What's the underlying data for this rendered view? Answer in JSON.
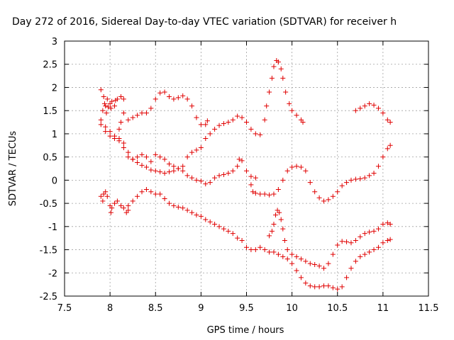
{
  "chart_data": {
    "type": "scatter",
    "title": "Day 272 of 2016, Sidereal Day-to-day VTEC variation (SDTVAR) for receiver h",
    "xlabel": "GPS time / hours",
    "ylabel": "SDTVAR / TECUs",
    "xlim": [
      7.5,
      11.5
    ],
    "ylim": [
      -2.5,
      3
    ],
    "xticks": [
      "7.5",
      "8",
      "8.5",
      "9",
      "9.5",
      "10",
      "10.5",
      "11",
      "11.5"
    ],
    "yticks": [
      "-2.5",
      "-2",
      "-1.5",
      "-1",
      "-0.5",
      "0",
      "0.5",
      "1",
      "1.5",
      "2",
      "2.5",
      "3"
    ],
    "grid": true,
    "marker": "+",
    "color": "#e00000",
    "series": [
      {
        "points": [
          [
            7.9,
            1.95
          ],
          [
            7.93,
            1.8
          ],
          [
            7.95,
            1.6
          ],
          [
            7.97,
            1.75
          ],
          [
            8.0,
            1.65
          ],
          [
            8.02,
            1.7
          ],
          [
            8.05,
            1.6
          ],
          [
            8.08,
            1.75
          ],
          [
            7.92,
            1.5
          ],
          [
            7.96,
            1.45
          ],
          [
            8.01,
            1.55
          ],
          [
            8.06,
            1.72
          ],
          [
            8.12,
            1.8
          ],
          [
            8.15,
            1.75
          ],
          [
            7.94,
            1.65
          ],
          [
            7.98,
            1.58
          ]
        ]
      },
      {
        "points": [
          [
            7.9,
            1.3
          ],
          [
            7.95,
            1.15
          ],
          [
            8.0,
            1.05
          ],
          [
            8.05,
            0.95
          ],
          [
            8.1,
            0.9
          ],
          [
            8.15,
            0.8
          ],
          [
            8.2,
            0.6
          ],
          [
            8.25,
            0.45
          ],
          [
            8.3,
            0.38
          ],
          [
            8.35,
            0.32
          ],
          [
            8.4,
            0.28
          ],
          [
            8.45,
            0.22
          ],
          [
            8.5,
            0.2
          ],
          [
            8.55,
            0.18
          ],
          [
            8.6,
            0.15
          ],
          [
            8.65,
            0.18
          ],
          [
            8.7,
            0.2
          ],
          [
            8.75,
            0.25
          ],
          [
            8.8,
            0.2
          ],
          [
            8.85,
            0.1
          ],
          [
            8.9,
            0.05
          ],
          [
            8.95,
            0.0
          ],
          [
            9.0,
            -0.02
          ],
          [
            9.05,
            -0.08
          ],
          [
            9.1,
            -0.05
          ],
          [
            9.15,
            0.05
          ],
          [
            9.2,
            0.1
          ],
          [
            9.25,
            0.12
          ],
          [
            9.3,
            0.15
          ],
          [
            9.35,
            0.2
          ],
          [
            9.4,
            0.3
          ],
          [
            9.42,
            0.45
          ],
          [
            9.45,
            0.42
          ],
          [
            9.5,
            0.2
          ],
          [
            9.55,
            0.08
          ],
          [
            9.6,
            0.05
          ],
          [
            9.55,
            -0.1
          ],
          [
            9.57,
            -0.25
          ],
          [
            9.6,
            -0.28
          ],
          [
            9.65,
            -0.3
          ],
          [
            9.7,
            -0.3
          ],
          [
            9.75,
            -0.32
          ],
          [
            9.8,
            -0.3
          ],
          [
            9.85,
            -0.2
          ],
          [
            9.9,
            0.0
          ],
          [
            9.95,
            0.2
          ],
          [
            10.0,
            0.28
          ],
          [
            10.05,
            0.3
          ],
          [
            10.1,
            0.28
          ],
          [
            10.15,
            0.2
          ],
          [
            10.2,
            -0.05
          ],
          [
            10.25,
            -0.25
          ],
          [
            10.3,
            -0.38
          ],
          [
            10.35,
            -0.45
          ],
          [
            10.4,
            -0.42
          ],
          [
            10.45,
            -0.35
          ],
          [
            10.5,
            -0.25
          ],
          [
            10.55,
            -0.12
          ],
          [
            10.6,
            -0.05
          ],
          [
            10.65,
            0.0
          ],
          [
            10.7,
            0.02
          ],
          [
            10.75,
            0.03
          ],
          [
            10.8,
            0.05
          ],
          [
            10.85,
            0.1
          ],
          [
            10.9,
            0.15
          ],
          [
            10.95,
            0.3
          ],
          [
            11.0,
            0.5
          ],
          [
            11.05,
            0.68
          ],
          [
            11.08,
            0.75
          ]
        ]
      },
      {
        "points": [
          [
            7.9,
            1.2
          ],
          [
            7.95,
            1.05
          ],
          [
            8.0,
            0.95
          ],
          [
            8.05,
            0.9
          ],
          [
            8.1,
            1.1
          ],
          [
            8.12,
            1.25
          ],
          [
            8.15,
            1.45
          ],
          [
            8.2,
            1.3
          ],
          [
            8.25,
            1.35
          ],
          [
            8.3,
            1.4
          ],
          [
            8.35,
            1.45
          ],
          [
            8.4,
            1.45
          ],
          [
            8.45,
            1.55
          ],
          [
            8.5,
            1.75
          ],
          [
            8.55,
            1.88
          ],
          [
            8.6,
            1.9
          ],
          [
            8.65,
            1.8
          ],
          [
            8.7,
            1.75
          ],
          [
            8.75,
            1.78
          ],
          [
            8.8,
            1.82
          ],
          [
            8.85,
            1.75
          ],
          [
            8.9,
            1.6
          ],
          [
            8.95,
            1.35
          ],
          [
            9.0,
            1.2
          ],
          [
            9.05,
            1.2
          ],
          [
            9.07,
            1.28
          ]
        ]
      },
      {
        "points": [
          [
            8.1,
            0.85
          ],
          [
            8.15,
            0.7
          ],
          [
            8.2,
            0.5
          ],
          [
            8.25,
            0.45
          ],
          [
            8.3,
            0.5
          ],
          [
            8.35,
            0.55
          ],
          [
            8.4,
            0.5
          ],
          [
            8.45,
            0.4
          ],
          [
            8.5,
            0.55
          ],
          [
            8.55,
            0.5
          ],
          [
            8.6,
            0.45
          ],
          [
            8.65,
            0.35
          ],
          [
            8.7,
            0.3
          ],
          [
            8.75,
            0.25
          ],
          [
            8.8,
            0.3
          ],
          [
            8.85,
            0.5
          ],
          [
            8.9,
            0.6
          ],
          [
            8.95,
            0.65
          ],
          [
            9.0,
            0.7
          ],
          [
            9.05,
            0.9
          ],
          [
            9.1,
            1.0
          ],
          [
            9.15,
            1.1
          ],
          [
            9.2,
            1.18
          ],
          [
            9.25,
            1.22
          ],
          [
            9.3,
            1.25
          ],
          [
            9.35,
            1.3
          ],
          [
            9.4,
            1.38
          ],
          [
            9.45,
            1.35
          ],
          [
            9.5,
            1.25
          ],
          [
            9.55,
            1.1
          ],
          [
            9.6,
            1.0
          ],
          [
            9.65,
            0.98
          ],
          [
            9.7,
            1.3
          ],
          [
            9.72,
            1.6
          ],
          [
            9.75,
            1.9
          ],
          [
            9.78,
            2.2
          ],
          [
            9.8,
            2.45
          ],
          [
            9.83,
            2.58
          ],
          [
            9.85,
            2.55
          ],
          [
            9.88,
            2.4
          ],
          [
            9.9,
            2.2
          ],
          [
            9.93,
            1.9
          ],
          [
            9.97,
            1.65
          ],
          [
            10.0,
            1.5
          ],
          [
            10.05,
            1.4
          ],
          [
            10.1,
            1.3
          ],
          [
            10.12,
            1.25
          ]
        ]
      },
      {
        "points": [
          [
            8.15,
            -0.6
          ],
          [
            8.2,
            -0.55
          ],
          [
            8.25,
            -0.45
          ],
          [
            8.3,
            -0.35
          ],
          [
            8.35,
            -0.25
          ],
          [
            8.4,
            -0.2
          ],
          [
            8.45,
            -0.25
          ],
          [
            8.5,
            -0.3
          ],
          [
            8.55,
            -0.3
          ],
          [
            8.6,
            -0.4
          ],
          [
            8.65,
            -0.5
          ],
          [
            8.7,
            -0.55
          ],
          [
            8.75,
            -0.58
          ],
          [
            8.8,
            -0.6
          ],
          [
            8.85,
            -0.65
          ],
          [
            8.9,
            -0.7
          ],
          [
            8.95,
            -0.75
          ],
          [
            9.0,
            -0.78
          ],
          [
            9.05,
            -0.85
          ],
          [
            9.1,
            -0.9
          ],
          [
            9.15,
            -0.95
          ],
          [
            9.2,
            -1.0
          ],
          [
            9.25,
            -1.05
          ],
          [
            9.3,
            -1.1
          ],
          [
            9.35,
            -1.15
          ],
          [
            9.4,
            -1.25
          ],
          [
            9.45,
            -1.3
          ],
          [
            9.5,
            -1.45
          ],
          [
            9.55,
            -1.5
          ],
          [
            9.6,
            -1.5
          ],
          [
            9.65,
            -1.45
          ],
          [
            9.7,
            -1.5
          ],
          [
            9.75,
            -1.55
          ],
          [
            9.8,
            -1.55
          ],
          [
            9.85,
            -1.6
          ],
          [
            9.9,
            -1.65
          ],
          [
            9.95,
            -1.7
          ],
          [
            10.0,
            -1.8
          ],
          [
            10.05,
            -1.95
          ],
          [
            10.1,
            -2.1
          ],
          [
            10.15,
            -2.22
          ],
          [
            10.2,
            -2.28
          ],
          [
            10.25,
            -2.3
          ],
          [
            10.3,
            -2.3
          ],
          [
            10.35,
            -2.28
          ],
          [
            10.4,
            -2.28
          ],
          [
            10.45,
            -2.32
          ],
          [
            10.5,
            -2.35
          ],
          [
            10.55,
            -2.3
          ],
          [
            10.6,
            -2.1
          ],
          [
            10.65,
            -1.9
          ],
          [
            10.7,
            -1.75
          ],
          [
            10.75,
            -1.65
          ],
          [
            10.8,
            -1.6
          ],
          [
            10.85,
            -1.55
          ],
          [
            10.9,
            -1.5
          ],
          [
            10.95,
            -1.45
          ],
          [
            11.0,
            -1.35
          ],
          [
            11.05,
            -1.3
          ],
          [
            11.08,
            -1.28
          ]
        ]
      },
      {
        "points": [
          [
            7.9,
            -0.35
          ],
          [
            7.93,
            -0.3
          ],
          [
            7.95,
            -0.25
          ],
          [
            7.97,
            -0.35
          ],
          [
            8.0,
            -0.55
          ],
          [
            8.02,
            -0.6
          ],
          [
            8.05,
            -0.5
          ],
          [
            8.08,
            -0.45
          ],
          [
            7.92,
            -0.45
          ],
          [
            8.01,
            -0.7
          ],
          [
            8.12,
            -0.55
          ],
          [
            8.18,
            -0.7
          ],
          [
            8.2,
            -0.65
          ]
        ]
      },
      {
        "points": [
          [
            9.75,
            -1.2
          ],
          [
            9.78,
            -1.1
          ],
          [
            9.8,
            -0.95
          ],
          [
            9.82,
            -0.75
          ],
          [
            9.84,
            -0.65
          ],
          [
            9.86,
            -0.7
          ],
          [
            9.88,
            -0.85
          ],
          [
            9.9,
            -1.05
          ],
          [
            9.92,
            -1.3
          ],
          [
            9.95,
            -1.5
          ],
          [
            10.0,
            -1.6
          ],
          [
            10.05,
            -1.65
          ],
          [
            10.1,
            -1.7
          ],
          [
            10.15,
            -1.75
          ],
          [
            10.2,
            -1.8
          ],
          [
            10.25,
            -1.82
          ],
          [
            10.3,
            -1.85
          ],
          [
            10.35,
            -1.9
          ],
          [
            10.4,
            -1.8
          ],
          [
            10.45,
            -1.6
          ],
          [
            10.5,
            -1.4
          ],
          [
            10.55,
            -1.32
          ],
          [
            10.6,
            -1.33
          ],
          [
            10.65,
            -1.35
          ],
          [
            10.7,
            -1.3
          ],
          [
            10.75,
            -1.22
          ],
          [
            10.8,
            -1.15
          ],
          [
            10.85,
            -1.12
          ],
          [
            10.9,
            -1.1
          ],
          [
            10.95,
            -1.05
          ],
          [
            11.0,
            -0.95
          ],
          [
            11.05,
            -0.92
          ],
          [
            11.08,
            -0.95
          ]
        ]
      },
      {
        "points": [
          [
            10.7,
            1.5
          ],
          [
            10.75,
            1.55
          ],
          [
            10.8,
            1.6
          ],
          [
            10.85,
            1.65
          ],
          [
            10.9,
            1.62
          ],
          [
            10.95,
            1.55
          ],
          [
            11.0,
            1.45
          ],
          [
            11.05,
            1.3
          ],
          [
            11.08,
            1.25
          ]
        ]
      }
    ]
  }
}
